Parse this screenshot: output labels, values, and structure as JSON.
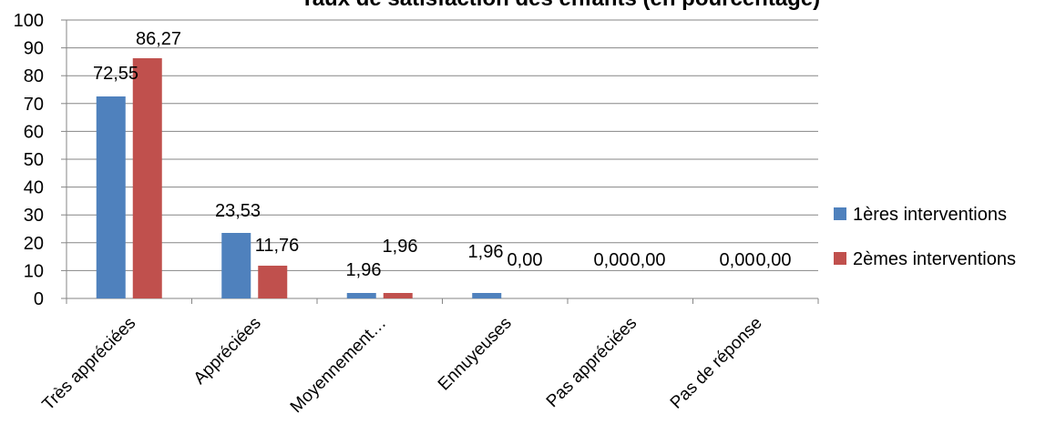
{
  "chart_data": {
    "type": "bar",
    "title": "Taux de satisfaction des enfants (en pourcentage)",
    "categories": [
      "Très appréciées",
      "Appréciées",
      "Moyennement…",
      "Ennuyeuses",
      "Pas appréciées",
      "Pas de réponse"
    ],
    "series": [
      {
        "name": "1ères interventions",
        "color": "#4F81BD",
        "values": [
          72.55,
          23.53,
          1.96,
          1.96,
          0.0,
          0.0
        ],
        "labels": [
          "72,55",
          "23,53",
          "1,96",
          "1,96",
          "0,00",
          "0,00"
        ]
      },
      {
        "name": "2èmes interventions",
        "color": "#C0504D",
        "values": [
          86.27,
          11.76,
          1.96,
          0.0,
          0.0,
          0.0
        ],
        "labels": [
          "86,27",
          "11,76",
          "1,96",
          "0,00",
          "0,00",
          "0,00"
        ]
      }
    ],
    "ylim": [
      0,
      100
    ],
    "yticks": [
      0,
      10,
      20,
      30,
      40,
      50,
      60,
      70,
      80,
      90,
      100
    ],
    "grid": true,
    "legend_position": "right"
  }
}
